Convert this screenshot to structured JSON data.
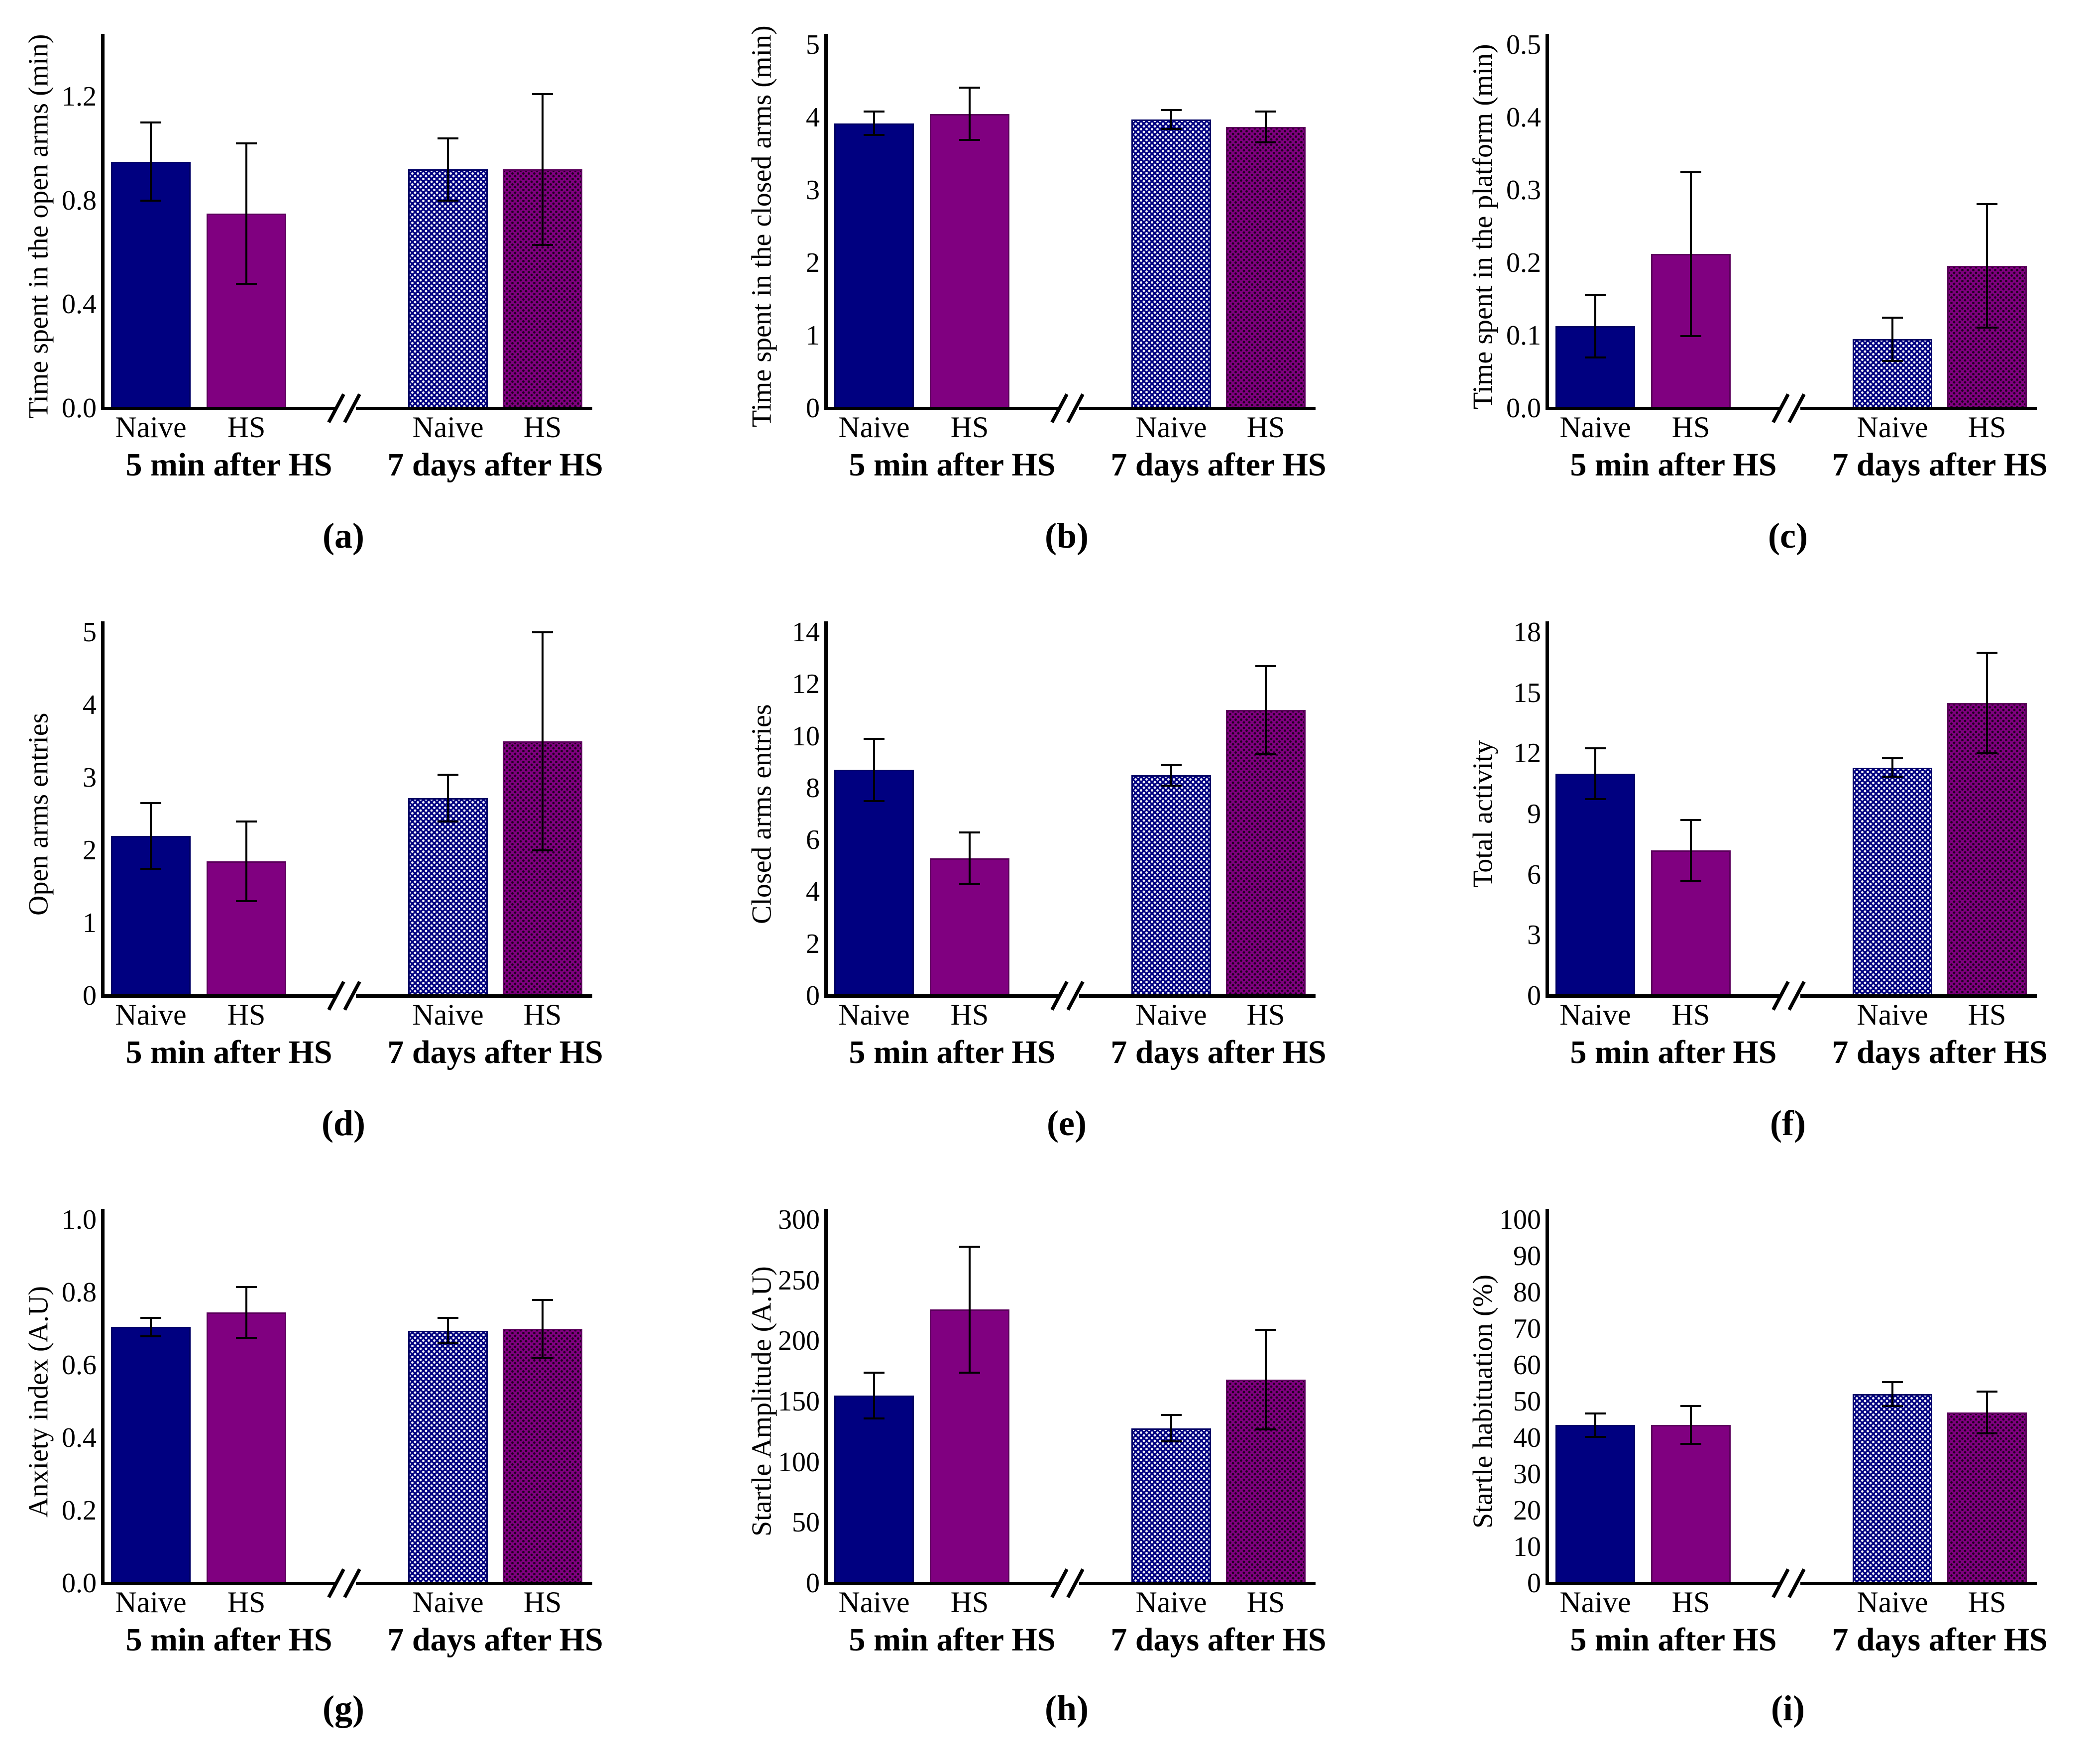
{
  "groups": [
    "5 min after HS",
    "7 days after HS"
  ],
  "conditions": [
    "Naive",
    "HS"
  ],
  "bar_styles": [
    "solid-navy",
    "solid-purple",
    "hatched-navy",
    "hatched-purple"
  ],
  "axis_break_symbol": "//",
  "colors": {
    "naive": "#000080",
    "hs": "#800080",
    "naive_border": "#000066",
    "hs_border": "#5c005c",
    "axis": "#000000",
    "text": "#000000",
    "background": "#ffffff",
    "hatch_dot_on_navy": "#ffffff",
    "hatch_dot_on_purple": "#000000"
  },
  "chart_data": [
    {
      "id": "a",
      "label": "(a)",
      "type": "bar",
      "ylabel": "Time spent in the open arms (min)",
      "ylim": [
        0,
        1.4
      ],
      "yticks": [
        0,
        0.4,
        0.8,
        1.2
      ],
      "tick_labels": [
        "0.0",
        "0.4",
        "0.8",
        "1.2"
      ],
      "categories": [
        "Naive | 5 min after HS",
        "HS | 5 min after HS",
        "Naive | 7 days after HS",
        "HS | 7 days after HS"
      ],
      "values": [
        0.95,
        0.75,
        0.92,
        0.92
      ],
      "errors": [
        0.15,
        0.27,
        0.12,
        0.29
      ]
    },
    {
      "id": "b",
      "label": "(b)",
      "type": "bar",
      "ylabel": "Time spent in the closed arms (min)",
      "ylim": [
        0,
        5
      ],
      "yticks": [
        0,
        1,
        2,
        3,
        4,
        5
      ],
      "tick_labels": [
        "0",
        "1",
        "2",
        "3",
        "4",
        "5"
      ],
      "categories": [
        "Naive | 5 min after HS",
        "HS | 5 min after HS",
        "Naive | 7 days after HS",
        "HS | 7 days after HS"
      ],
      "values": [
        3.92,
        4.05,
        3.97,
        3.87
      ],
      "errors": [
        0.16,
        0.36,
        0.13,
        0.21
      ]
    },
    {
      "id": "c",
      "label": "(c)",
      "type": "bar",
      "ylabel": "Time spent in the platform (min)",
      "ylim": [
        0,
        0.5
      ],
      "yticks": [
        0,
        0.1,
        0.2,
        0.3,
        0.4,
        0.5
      ],
      "tick_labels": [
        "0.0",
        "0.1",
        "0.2",
        "0.3",
        "0.4",
        "0.5"
      ],
      "categories": [
        "Naive | 5 min after HS",
        "HS | 5 min after HS",
        "Naive | 7 days after HS",
        "HS | 7 days after HS"
      ],
      "values": [
        0.113,
        0.212,
        0.095,
        0.196
      ],
      "errors": [
        0.043,
        0.113,
        0.03,
        0.085
      ]
    },
    {
      "id": "d",
      "label": "(d)",
      "type": "bar",
      "ylabel": "Open arms entries",
      "ylim": [
        0,
        5
      ],
      "yticks": [
        0,
        1,
        2,
        3,
        4,
        5
      ],
      "tick_labels": [
        "0",
        "1",
        "2",
        "3",
        "4",
        "5"
      ],
      "categories": [
        "Naive | 5 min after HS",
        "HS | 5 min after HS",
        "Naive | 7 days after HS",
        "HS | 7 days after HS"
      ],
      "values": [
        2.2,
        1.85,
        2.72,
        3.5
      ],
      "errors": [
        0.45,
        0.55,
        0.32,
        1.5
      ]
    },
    {
      "id": "e",
      "label": "(e)",
      "type": "bar",
      "ylabel": "Closed arms entries",
      "ylim": [
        0,
        14
      ],
      "yticks": [
        0,
        2,
        4,
        6,
        8,
        10,
        12,
        14
      ],
      "tick_labels": [
        "0",
        "2",
        "4",
        "6",
        "8",
        "10",
        "12",
        "14"
      ],
      "categories": [
        "Naive | 5 min after HS",
        "HS | 5 min after HS",
        "Naive | 7 days after HS",
        "HS | 7 days after HS"
      ],
      "values": [
        8.7,
        5.3,
        8.5,
        11.0
      ],
      "errors": [
        1.2,
        1.0,
        0.4,
        1.7
      ]
    },
    {
      "id": "f",
      "label": "(f)",
      "type": "bar",
      "ylabel": "Total activity",
      "ylim": [
        0,
        18
      ],
      "yticks": [
        0,
        3,
        6,
        9,
        12,
        15,
        18
      ],
      "tick_labels": [
        "0",
        "3",
        "6",
        "9",
        "12",
        "15",
        "18"
      ],
      "categories": [
        "Naive | 5 min after HS",
        "HS | 5 min after HS",
        "Naive | 7 days after HS",
        "HS | 7 days after HS"
      ],
      "values": [
        11.0,
        7.2,
        11.3,
        14.5
      ],
      "errors": [
        1.25,
        1.5,
        0.45,
        2.5
      ]
    },
    {
      "id": "g",
      "label": "(g)",
      "type": "bar",
      "ylabel": "Anxiety index (A.U)",
      "ylim": [
        0,
        1.0
      ],
      "yticks": [
        0,
        0.2,
        0.4,
        0.6,
        0.8,
        1.0
      ],
      "tick_labels": [
        "0.0",
        "0.2",
        "0.4",
        "0.6",
        "0.8",
        "1.0"
      ],
      "categories": [
        "Naive | 5 min after HS",
        "HS | 5 min after HS",
        "Naive | 7 days after HS",
        "HS | 7 days after HS"
      ],
      "values": [
        0.705,
        0.745,
        0.695,
        0.7
      ],
      "errors": [
        0.025,
        0.07,
        0.035,
        0.08
      ]
    },
    {
      "id": "h",
      "label": "(h)",
      "type": "bar",
      "ylabel": "Startle Amplitude (A.U)",
      "ylim": [
        0,
        300
      ],
      "yticks": [
        0,
        50,
        100,
        150,
        200,
        250,
        300
      ],
      "tick_labels": [
        "0",
        "50",
        "100",
        "150",
        "200",
        "250",
        "300"
      ],
      "categories": [
        "Naive | 5 min after HS",
        "HS | 5 min after HS",
        "Naive | 7 days after HS",
        "HS | 7 days after HS"
      ],
      "values": [
        155,
        226,
        128,
        168
      ],
      "errors": [
        19,
        52,
        11,
        41
      ]
    },
    {
      "id": "i",
      "label": "(i)",
      "type": "bar",
      "ylabel": "Startle habituation (%)",
      "ylim": [
        0,
        100
      ],
      "yticks": [
        0,
        10,
        20,
        30,
        40,
        50,
        60,
        70,
        80,
        90,
        100
      ],
      "tick_labels": [
        "0",
        "10",
        "20",
        "30",
        "40",
        "50",
        "60",
        "70",
        "80",
        "90",
        "100"
      ],
      "categories": [
        "Naive | 5 min after HS",
        "HS | 5 min after HS",
        "Naive | 7 days after HS",
        "HS | 7 days after HS"
      ],
      "values": [
        43.5,
        43.5,
        52,
        47
      ],
      "errors": [
        3.2,
        5.2,
        3.3,
        5.7
      ]
    }
  ]
}
